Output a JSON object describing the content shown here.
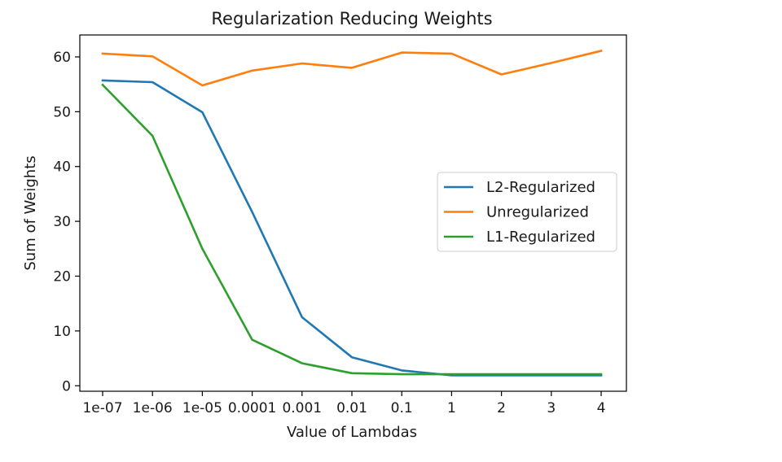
{
  "chart_data": {
    "type": "line",
    "title": "Regularization Reducing Weights",
    "xlabel": "Value of Lambdas",
    "ylabel": "Sum of Weights",
    "categories": [
      "1e-07",
      "1e-06",
      "1e-05",
      "0.0001",
      "0.001",
      "0.01",
      "0.1",
      "1",
      "2",
      "3",
      "4"
    ],
    "ylim": [
      -1,
      64
    ],
    "yticks": [
      0,
      10,
      20,
      30,
      40,
      50,
      60
    ],
    "grid": false,
    "legend_position": "center-right",
    "series": [
      {
        "name": "L2-Regularized",
        "color": "#1f77b4",
        "values": [
          55.7,
          55.4,
          49.9,
          31.7,
          12.5,
          5.2,
          2.8,
          1.9,
          1.9,
          1.9,
          1.9
        ]
      },
      {
        "name": "Unregularized",
        "color": "#ff7f0e",
        "values": [
          60.6,
          60.1,
          54.8,
          57.5,
          58.8,
          58.0,
          60.8,
          60.6,
          56.8,
          58.9,
          61.1
        ]
      },
      {
        "name": "L1-Regularized",
        "color": "#2ca02c",
        "values": [
          54.9,
          45.6,
          25.0,
          8.4,
          4.1,
          2.3,
          2.1,
          2.1,
          2.1,
          2.1,
          2.1
        ]
      }
    ]
  }
}
